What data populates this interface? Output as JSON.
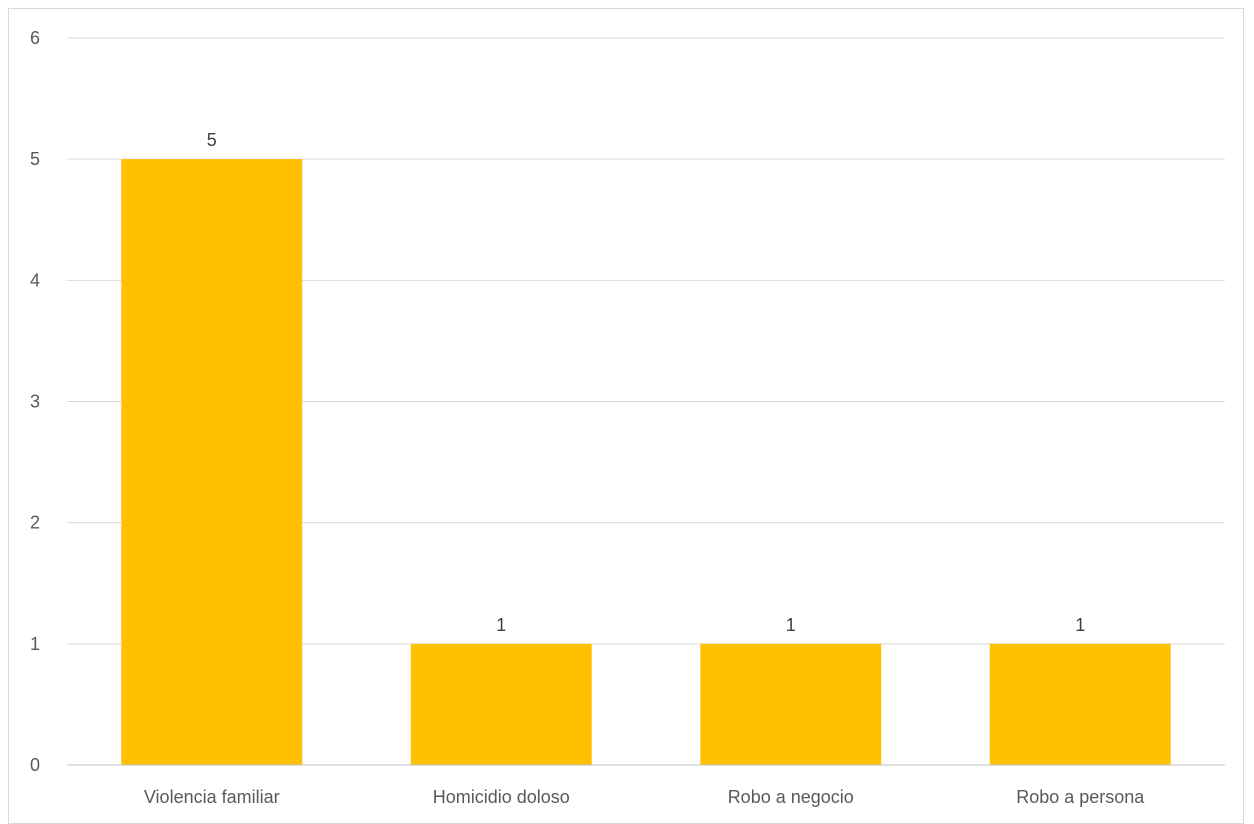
{
  "chart_data": {
    "type": "bar",
    "categories": [
      "Violencia familiar",
      "Homicidio doloso",
      "Robo a negocio",
      "Robo a persona"
    ],
    "values": [
      5,
      1,
      1,
      1
    ],
    "data_labels": [
      "5",
      "1",
      "1",
      "1"
    ],
    "title": "",
    "xlabel": "",
    "ylabel": "",
    "ylim": [
      0,
      6
    ],
    "yticks": [
      "0",
      "1",
      "2",
      "3",
      "4",
      "5",
      "6"
    ],
    "grid": true,
    "legend": "none",
    "bar_color": "#FFC000"
  }
}
